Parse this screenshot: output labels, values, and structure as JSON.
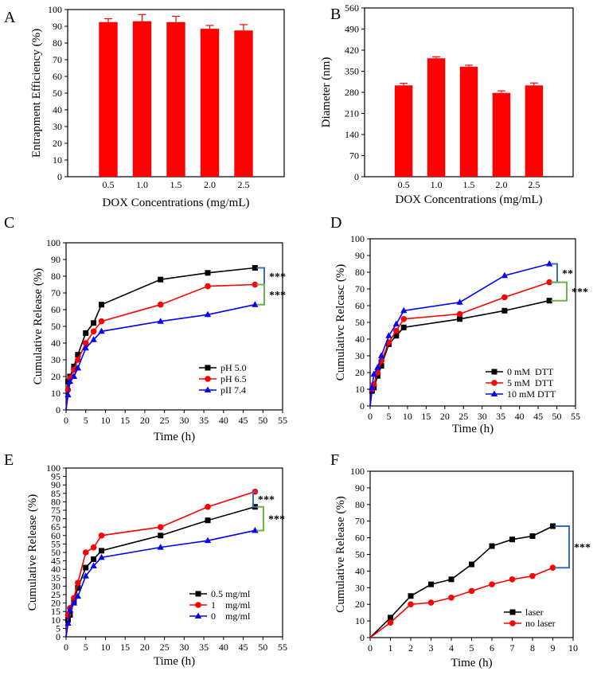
{
  "chart_data": [
    {
      "id": "A",
      "panel_label": "A",
      "type": "bar",
      "xlabel": "DOX Concentrations (mg/mL)",
      "ylabel": "Entrapment Efficiency (%)",
      "categories": [
        "0.5",
        "1.0",
        "1.5",
        "2.0",
        "2.5"
      ],
      "values": [
        92.5,
        93,
        92.5,
        88.5,
        87.5
      ],
      "errors": [
        2,
        4,
        3.5,
        2,
        3.5
      ],
      "ylim": [
        0,
        100
      ],
      "yticks": [
        "0",
        "10",
        "20",
        "30",
        "40",
        "50",
        "60",
        "70",
        "80",
        "90",
        "100"
      ],
      "color": "#ff0000"
    },
    {
      "id": "B",
      "panel_label": "B",
      "type": "bar",
      "xlabel": "DOX Concentrations (mg/mL)",
      "ylabel": "Diameter (nm)",
      "categories": [
        "0.5",
        "1.0",
        "1.5",
        "2.0",
        "2.5"
      ],
      "values": [
        303,
        393,
        365,
        278,
        303
      ],
      "errors": [
        7,
        5,
        5,
        7,
        8
      ],
      "ylim": [
        0,
        560
      ],
      "yticks": [
        "0",
        "70",
        "140",
        "210",
        "280",
        "350",
        "420",
        "490",
        "560"
      ],
      "color": "#ff0000"
    },
    {
      "id": "C",
      "panel_label": "C",
      "type": "line",
      "xlabel": "Time (h)",
      "ylabel": "Cumulative Release (%)",
      "xlim": [
        0,
        55
      ],
      "ylim": [
        0,
        100
      ],
      "xticks": [
        "0",
        "5",
        "10",
        "15",
        "20",
        "25",
        "30",
        "35",
        "40",
        "45",
        "50",
        "55"
      ],
      "yticks": [
        "0",
        "10",
        "20",
        "30",
        "40",
        "50",
        "60",
        "70",
        "80",
        "90",
        "100"
      ],
      "x": [
        0,
        0.5,
        1,
        2,
        3,
        5,
        7,
        9,
        24,
        36,
        48
      ],
      "series": [
        {
          "name": "pH 5.0",
          "color": "#000000",
          "marker": "square",
          "values": [
            0,
            17,
            20,
            26,
            33,
            46,
            52,
            63,
            78,
            82,
            85
          ]
        },
        {
          "name": "pH 6.5",
          "color": "#ff0000",
          "marker": "circle",
          "values": [
            0,
            12,
            19,
            24,
            30,
            40,
            47,
            53,
            63,
            74,
            75
          ]
        },
        {
          "name": "pII 7.4",
          "color": "#0000ff",
          "marker": "triangle",
          "values": [
            0,
            9,
            17,
            20,
            25,
            37,
            42,
            47,
            53,
            57,
            63
          ]
        }
      ],
      "significance": [
        "***",
        "***"
      ],
      "legend_position": "bottom-right"
    },
    {
      "id": "D",
      "panel_label": "D",
      "type": "line",
      "xlabel": "Time (h)",
      "ylabel": "Cumulativc Relcasc (%)",
      "xlim": [
        0,
        55
      ],
      "ylim": [
        0,
        100
      ],
      "xticks": [
        "0",
        "5",
        "10",
        "15",
        "20",
        "25",
        "30",
        "35",
        "40",
        "45",
        "50",
        "55"
      ],
      "yticks": [
        "0",
        "10",
        "20",
        "30",
        "40",
        "50",
        "60",
        "70",
        "80",
        "90",
        "100"
      ],
      "x": [
        0,
        0.5,
        1,
        2,
        3,
        5,
        7,
        9,
        24,
        36,
        48
      ],
      "series": [
        {
          "name": "0 mM  DTT",
          "color": "#000000",
          "marker": "square",
          "values": [
            0,
            9,
            11,
            18,
            24,
            37,
            42,
            47,
            52,
            57,
            63
          ]
        },
        {
          "name": "5 mM  DTT",
          "color": "#ff0000",
          "marker": "circle",
          "values": [
            0,
            10,
            13,
            20,
            27,
            38,
            45,
            52,
            55,
            65,
            74
          ]
        },
        {
          "name": "10 mM DTT",
          "color": "#0000ff",
          "marker": "triangle",
          "values": [
            0,
            11,
            19,
            23,
            30,
            42,
            49,
            57,
            62,
            78,
            85
          ]
        }
      ],
      "significance": [
        "**",
        "***"
      ],
      "legend_position": "bottom-right"
    },
    {
      "id": "E",
      "panel_label": "E",
      "type": "line",
      "xlabel": "Time (h)",
      "ylabel": "Cumulative Release (%)",
      "xlim": [
        0,
        55
      ],
      "ylim": [
        0,
        100
      ],
      "xticks": [
        "0",
        "5",
        "10",
        "15",
        "20",
        "25",
        "30",
        "35",
        "40",
        "45",
        "50",
        "55"
      ],
      "yticks": [
        "0",
        "5",
        "10",
        "15",
        "20",
        "25",
        "30",
        "35",
        "40",
        "45",
        "50",
        "55",
        "60",
        "65",
        "70",
        "75",
        "80",
        "85",
        "90",
        "95",
        "100"
      ],
      "x": [
        0,
        0.5,
        1,
        2,
        3,
        5,
        7,
        9,
        24,
        36,
        48
      ],
      "series": [
        {
          "name": "0.5 mg/ml",
          "color": "#000000",
          "marker": "square",
          "values": [
            0,
            10,
            13,
            21,
            29,
            41,
            46,
            51,
            60,
            69,
            77
          ]
        },
        {
          "name": "1    mg/ml",
          "color": "#ff0000",
          "marker": "circle",
          "values": [
            0,
            13,
            17,
            23,
            32,
            50,
            53,
            60,
            65,
            77,
            86
          ]
        },
        {
          "name": "0    mg/ml",
          "color": "#0000ff",
          "marker": "triangle",
          "values": [
            0,
            8,
            16,
            20,
            24,
            36,
            42,
            47,
            53,
            57,
            63
          ]
        }
      ],
      "significance": [
        "***",
        "***"
      ],
      "legend_position": "bottom-right"
    },
    {
      "id": "F",
      "panel_label": "F",
      "type": "line",
      "xlabel": "Time (h)",
      "ylabel": "Cumulative Release (%)",
      "xlim": [
        0,
        10
      ],
      "ylim": [
        0,
        100
      ],
      "xticks": [
        "0",
        "1",
        "2",
        "3",
        "4",
        "5",
        "6",
        "7",
        "8",
        "9",
        "10"
      ],
      "yticks": [
        "0",
        "10",
        "20",
        "30",
        "40",
        "50",
        "60",
        "70",
        "80",
        "90",
        "100"
      ],
      "x": [
        0,
        1,
        2,
        3,
        4,
        5,
        6,
        7,
        8,
        9
      ],
      "series": [
        {
          "name": "laser",
          "color": "#000000",
          "marker": "square",
          "values": [
            0,
            12,
            25,
            32,
            35,
            44,
            55,
            59,
            61,
            67
          ]
        },
        {
          "name": "no laser",
          "color": "#ff0000",
          "marker": "circle",
          "values": [
            0,
            9,
            20,
            21,
            24,
            28,
            32,
            35,
            37,
            42
          ]
        }
      ],
      "significance": [
        "***"
      ],
      "legend_position": "bottom-right"
    }
  ]
}
